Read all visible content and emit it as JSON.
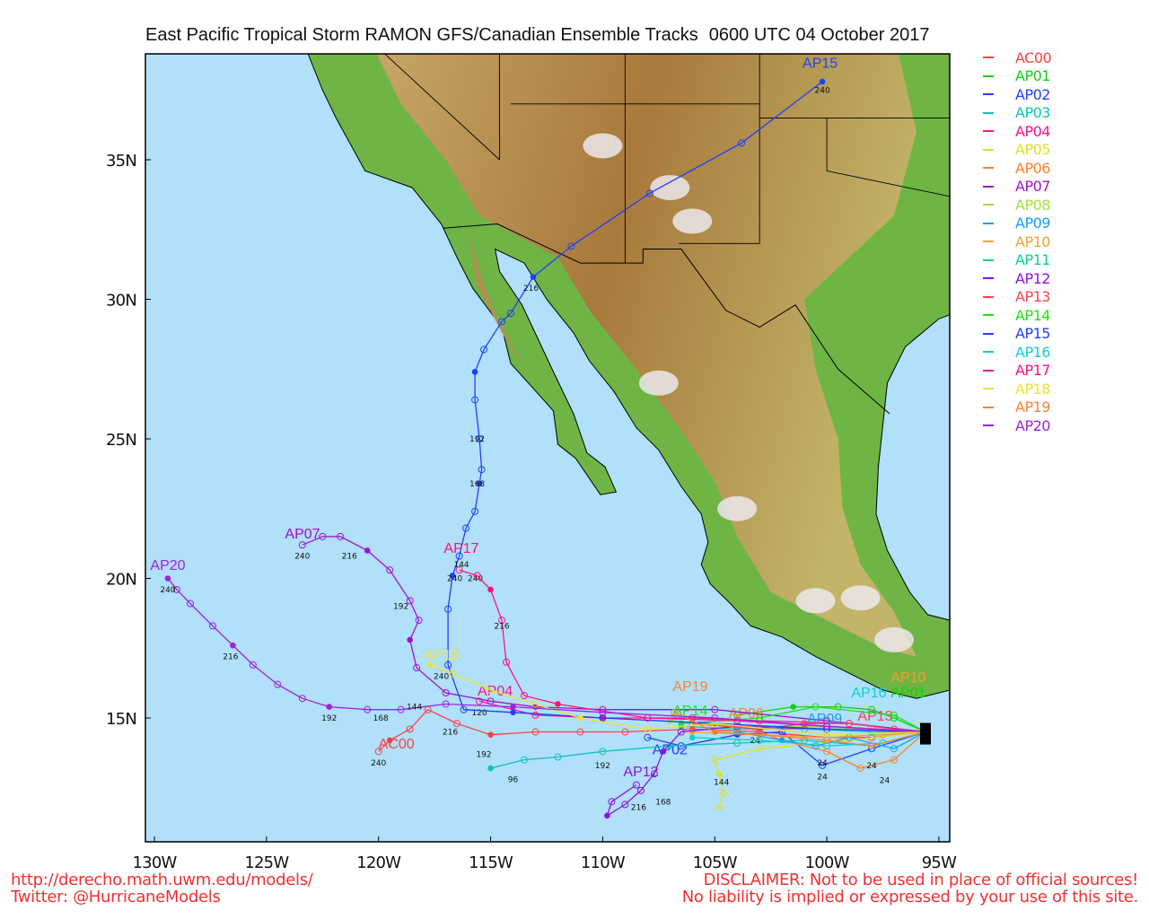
{
  "title": {
    "main": "East Pacific Tropical Storm RAMON GFS/Canadian Ensemble Tracks",
    "time": "0600 UTC 04 October 2017"
  },
  "axes": {
    "lon_ticks": [
      {
        "lon": -130,
        "label": "130W"
      },
      {
        "lon": -125,
        "label": "125W"
      },
      {
        "lon": -120,
        "label": "120W"
      },
      {
        "lon": -115,
        "label": "115W"
      },
      {
        "lon": -110,
        "label": "110W"
      },
      {
        "lon": -105,
        "label": "105W"
      },
      {
        "lon": -100,
        "label": "100W"
      },
      {
        "lon": -95,
        "label": "95W"
      }
    ],
    "lat_ticks": [
      {
        "lat": 35,
        "label": "35N"
      },
      {
        "lat": 30,
        "label": "30N"
      },
      {
        "lat": 25,
        "label": "25N"
      },
      {
        "lat": 20,
        "label": "20N"
      },
      {
        "lat": 15,
        "label": "15N"
      }
    ]
  },
  "colors": {
    "ocean": "#b0e0fa",
    "land_low": "#6fb545",
    "land_high": "#a67c3a",
    "peaks": "#ece8ec"
  },
  "legend": [
    {
      "name": "AC00",
      "color": "#ff4040"
    },
    {
      "name": "AP01",
      "color": "#10d010"
    },
    {
      "name": "AP02",
      "color": "#2040ff"
    },
    {
      "name": "AP03",
      "color": "#10c0c0"
    },
    {
      "name": "AP04",
      "color": "#ff1090"
    },
    {
      "name": "AP05",
      "color": "#e0e020"
    },
    {
      "name": "AP06",
      "color": "#ff8020"
    },
    {
      "name": "AP07",
      "color": "#a010d0"
    },
    {
      "name": "AP08",
      "color": "#a0e040"
    },
    {
      "name": "AP09",
      "color": "#10a0ff"
    },
    {
      "name": "AP10",
      "color": "#f0a030"
    },
    {
      "name": "AP11",
      "color": "#10d090"
    },
    {
      "name": "AP12",
      "color": "#9010e0"
    },
    {
      "name": "AP13",
      "color": "#ff4050"
    },
    {
      "name": "AP14",
      "color": "#20e010"
    },
    {
      "name": "AP15",
      "color": "#2040ff"
    },
    {
      "name": "AP16",
      "color": "#10d0d0"
    },
    {
      "name": "AP17",
      "color": "#ff1080"
    },
    {
      "name": "AP18",
      "color": "#f0e030"
    },
    {
      "name": "AP19",
      "color": "#ff8030"
    },
    {
      "name": "AP20",
      "color": "#a020e0"
    }
  ],
  "tracks": [
    {
      "name": "AC00",
      "label_at": [
        -119.2,
        13.9
      ],
      "points": [
        [
          -95.6,
          14.5
        ],
        [
          -98,
          14.3
        ],
        [
          -100,
          14.3
        ],
        [
          -103,
          14.5
        ],
        [
          -106,
          14.6
        ],
        [
          -109,
          14.5
        ],
        [
          -111,
          14.5
        ],
        [
          -113,
          14.5
        ],
        [
          -115,
          14.4
        ],
        [
          -116.5,
          14.8
        ],
        [
          -117.8,
          15.3
        ],
        [
          -118.6,
          14.6
        ],
        [
          -119.5,
          14.2
        ],
        [
          -120,
          13.8
        ]
      ],
      "hours": [
        [
          -116.8,
          14.4,
          "216"
        ],
        [
          -120,
          13.3,
          "240"
        ]
      ]
    },
    {
      "name": "AP01",
      "label_at": [
        -96.9,
        15.3
      ],
      "points": [
        [
          -95.6,
          14.5
        ],
        [
          -97,
          15.0
        ],
        [
          -98,
          15.3
        ],
        [
          -99.5,
          15.4
        ],
        [
          -101.5,
          15.4
        ],
        [
          -104,
          15.1
        ]
      ],
      "hours": []
    },
    {
      "name": "AP02",
      "label_at": [
        -107,
        13.7
      ],
      "points": [
        [
          -95.6,
          14.5
        ],
        [
          -98,
          13.9
        ],
        [
          -100.2,
          13.3
        ],
        [
          -102,
          14.5
        ],
        [
          -104,
          14.4
        ],
        [
          -106.5,
          14.0
        ],
        [
          -108,
          14.3
        ]
      ],
      "hours": [
        [
          -100.2,
          12.8,
          "24"
        ]
      ]
    },
    {
      "name": "AP03",
      "label_at": null,
      "points": [
        [
          -95.6,
          14.5
        ],
        [
          -98,
          14.0
        ],
        [
          -101,
          14.2
        ],
        [
          -104,
          14.1
        ],
        [
          -107,
          14.0
        ],
        [
          -110,
          13.8
        ],
        [
          -112,
          13.6
        ],
        [
          -113.5,
          13.5
        ],
        [
          -115,
          13.2
        ]
      ],
      "hours": [
        [
          -115.3,
          13.6,
          "192"
        ],
        [
          -114,
          12.7,
          "96"
        ]
      ]
    },
    {
      "name": "AP04",
      "label_at": [
        -114.8,
        15.8
      ],
      "points": [
        [
          -95.6,
          14.5
        ],
        [
          -99,
          14.8
        ],
        [
          -103,
          14.9
        ],
        [
          -106,
          15.0
        ],
        [
          -110,
          15.0
        ],
        [
          -113,
          15.1
        ],
        [
          -115.5,
          15.6
        ]
      ],
      "hours": [
        [
          -115.5,
          15.1,
          "120"
        ]
      ]
    },
    {
      "name": "AP05",
      "label_at": null,
      "points": [
        [
          -95.6,
          14.5
        ],
        [
          -99,
          14.2
        ],
        [
          -103,
          13.9
        ],
        [
          -105,
          13.5
        ],
        [
          -104.8,
          13.0
        ],
        [
          -104.6,
          12.3
        ],
        [
          -104.8,
          11.8
        ]
      ],
      "hours": [
        [
          -104.7,
          12.6,
          "144"
        ]
      ]
    },
    {
      "name": "AP06",
      "label_at": [
        -103.6,
        15.0
      ],
      "points": [
        [
          -95.6,
          14.5
        ],
        [
          -97,
          13.5
        ],
        [
          -98.5,
          13.2
        ],
        [
          -100,
          13.8
        ],
        [
          -102,
          14.2
        ],
        [
          -104,
          14.8
        ]
      ],
      "hours": [
        [
          -97.5,
          12.8,
          "24"
        ]
      ]
    },
    {
      "name": "AP07",
      "label_at": [
        -123.4,
        21.6
      ],
      "points": [
        [
          -95.6,
          14.5
        ],
        [
          -100,
          14.9
        ],
        [
          -105,
          15.3
        ],
        [
          -110,
          15.3
        ],
        [
          -113,
          15.4
        ],
        [
          -115,
          15.6
        ],
        [
          -117,
          15.9
        ],
        [
          -118.3,
          16.8
        ],
        [
          -118.6,
          17.8
        ],
        [
          -118.2,
          18.5
        ],
        [
          -118.6,
          19.2
        ],
        [
          -119.5,
          20.3
        ],
        [
          -120.5,
          21.0
        ],
        [
          -121.7,
          21.5
        ],
        [
          -122.5,
          21.5
        ],
        [
          -123.4,
          21.2
        ]
      ],
      "hours": [
        [
          -119,
          18.9,
          "192"
        ],
        [
          -121.3,
          20.7,
          "216"
        ],
        [
          -123.4,
          20.7,
          "240"
        ]
      ]
    },
    {
      "name": "AP08",
      "label_at": null,
      "points": [
        [
          -95.6,
          14.5
        ],
        [
          -98,
          14.6
        ],
        [
          -101,
          14.7
        ],
        [
          -104,
          14.7
        ],
        [
          -107,
          14.9
        ]
      ],
      "hours": []
    },
    {
      "name": "AP09",
      "label_at": [
        -100.1,
        14.8
      ],
      "points": [
        [
          -95.6,
          14.5
        ],
        [
          -97,
          13.9
        ],
        [
          -99,
          14.3
        ],
        [
          -100.5,
          14.0
        ],
        [
          -102,
          14.2
        ],
        [
          -104,
          14.5
        ]
      ],
      "hours": [
        [
          -100.2,
          13.3,
          "24"
        ]
      ]
    },
    {
      "name": "AP10",
      "label_at": [
        -96.2,
        15.5
      ],
      "points": [
        [
          -95.6,
          14.5
        ],
        [
          -97.5,
          14.4
        ],
        [
          -100,
          14.3
        ],
        [
          -103,
          14.4
        ],
        [
          -106,
          14.5
        ]
      ],
      "hours": []
    },
    {
      "name": "AP11",
      "label_at": null,
      "points": [
        [
          -95.6,
          14.5
        ],
        [
          -98,
          14.5
        ],
        [
          -101,
          14.6
        ],
        [
          -104,
          14.6
        ],
        [
          -106.5,
          14.7
        ]
      ],
      "hours": []
    },
    {
      "name": "AP12",
      "label_at": [
        -108.7,
        12.9
      ],
      "points": [
        [
          -95.6,
          14.5
        ],
        [
          -100,
          14.6
        ],
        [
          -104,
          14.7
        ],
        [
          -106.5,
          14.5
        ],
        [
          -107.3,
          13.8
        ],
        [
          -107.7,
          13.0
        ],
        [
          -108.3,
          12.4
        ],
        [
          -109,
          11.9
        ],
        [
          -109.8,
          11.5
        ],
        [
          -109.6,
          12.0
        ],
        [
          -108.5,
          12.6
        ]
      ],
      "hours": [
        [
          -108.4,
          11.7,
          "216"
        ],
        [
          -107.3,
          11.9,
          "168"
        ],
        [
          -110,
          13.2,
          "192"
        ]
      ]
    },
    {
      "name": "AP13",
      "label_at": [
        -98,
        14.9
      ],
      "points": [
        [
          -95.6,
          14.5
        ],
        [
          -97,
          14.6
        ],
        [
          -99,
          14.8
        ],
        [
          -101,
          14.8
        ],
        [
          -103,
          14.6
        ],
        [
          -106,
          14.8
        ]
      ],
      "hours": [
        [
          -98,
          13.2,
          "24"
        ]
      ]
    },
    {
      "name": "AP14",
      "label_at": [
        -106.1,
        15.1
      ],
      "points": [
        [
          -95.6,
          14.5
        ],
        [
          -97,
          15.1
        ],
        [
          -100.5,
          15.4
        ],
        [
          -103,
          15.0
        ],
        [
          -106.5,
          14.8
        ]
      ],
      "hours": [
        [
          -103.2,
          14.1,
          "24"
        ]
      ]
    },
    {
      "name": "AP15",
      "label_at": [
        -100.3,
        38.3
      ],
      "points": [
        [
          -95.6,
          14.5
        ],
        [
          -100,
          14.6
        ],
        [
          -105,
          14.8
        ],
        [
          -110,
          15.0
        ],
        [
          -114,
          15.2
        ],
        [
          -116.2,
          15.3
        ],
        [
          -116.9,
          16.9
        ],
        [
          -116.9,
          18.9
        ],
        [
          -116.7,
          20.1
        ],
        [
          -116.4,
          20.8
        ],
        [
          -116.1,
          21.8
        ],
        [
          -115.7,
          22.4
        ],
        [
          -115.5,
          23.4
        ],
        [
          -115.4,
          23.9
        ],
        [
          -115.5,
          25.0
        ],
        [
          -115.7,
          26.4
        ],
        [
          -115.7,
          27.4
        ],
        [
          -115.3,
          28.2
        ],
        [
          -114.5,
          29.2
        ],
        [
          -114.1,
          29.5
        ],
        [
          -113.1,
          30.8
        ],
        [
          -111.4,
          31.9
        ],
        [
          -107.9,
          33.8
        ],
        [
          -103.8,
          35.6
        ],
        [
          -100.2,
          37.8
        ]
      ],
      "hours": [
        [
          -116.4,
          19.9,
          "240"
        ],
        [
          -115.6,
          23.3,
          "168"
        ],
        [
          -115.6,
          24.9,
          "192"
        ],
        [
          -113.2,
          30.3,
          "216"
        ],
        [
          -100.2,
          37.4,
          "240"
        ]
      ]
    },
    {
      "name": "AP16",
      "label_at": [
        -96.1,
        15.1
      ],
      "points": [
        [
          -95.6,
          14.5
        ],
        [
          -97.5,
          14.1
        ],
        [
          -100,
          14.0
        ],
        [
          -103,
          14.2
        ],
        [
          -106,
          14.3
        ]
      ],
      "hours": []
    },
    {
      "name": "AP17",
      "label_at": [
        -116.3,
        20.6
      ],
      "points": [
        [
          -95.6,
          14.5
        ],
        [
          -100,
          14.7
        ],
        [
          -104,
          14.9
        ],
        [
          -108,
          15.0
        ],
        [
          -112,
          15.5
        ],
        [
          -113.5,
          15.8
        ],
        [
          -114.3,
          17.0
        ],
        [
          -114.5,
          18.5
        ],
        [
          -115,
          19.6
        ],
        [
          -115.6,
          20.1
        ],
        [
          -116.4,
          20.3
        ]
      ],
      "hours": [
        [
          -114.5,
          18.2,
          "216"
        ],
        [
          -116.6,
          19.9,
          "240"
        ],
        [
          -116.3,
          20.4,
          "144"
        ]
      ]
    },
    {
      "name": "AP18",
      "label_at": [
        -117.2,
        17.0
      ],
      "points": [
        [
          -95.6,
          14.5
        ],
        [
          -100,
          14.4
        ],
        [
          -105,
          14.8
        ],
        [
          -108,
          14.6
        ],
        [
          -111,
          15.0
        ],
        [
          -113,
          15.5
        ],
        [
          -115,
          16.0
        ],
        [
          -116.7,
          16.6
        ],
        [
          -117.7,
          16.9
        ]
      ],
      "hours": [
        [
          -117.2,
          16.4,
          "240"
        ]
      ]
    },
    {
      "name": "AP19",
      "label_at": [
        -106.1,
        15.7
      ],
      "points": [
        [
          -95.6,
          14.5
        ],
        [
          -98,
          14.0
        ],
        [
          -100,
          14.2
        ],
        [
          -103,
          14.4
        ],
        [
          -105,
          14.5
        ],
        [
          -106.8,
          15.2
        ]
      ],
      "hours": []
    },
    {
      "name": "AP20",
      "label_at": [
        -129.4,
        20.3
      ],
      "points": [
        [
          -95.6,
          14.5
        ],
        [
          -100,
          14.7
        ],
        [
          -105,
          15.0
        ],
        [
          -110,
          15.2
        ],
        [
          -114,
          15.4
        ],
        [
          -117,
          15.5
        ],
        [
          -119,
          15.3
        ],
        [
          -120.5,
          15.3
        ],
        [
          -122.2,
          15.4
        ],
        [
          -123.4,
          15.7
        ],
        [
          -124.5,
          16.2
        ],
        [
          -125.6,
          16.9
        ],
        [
          -126.5,
          17.6
        ],
        [
          -127.4,
          18.3
        ],
        [
          -128.4,
          19.1
        ],
        [
          -129,
          19.6
        ],
        [
          -129.4,
          20.0
        ]
      ],
      "hours": [
        [
          -122.2,
          14.9,
          "192"
        ],
        [
          -126.6,
          17.1,
          "216"
        ],
        [
          -129.4,
          19.5,
          "240"
        ],
        [
          -119.9,
          14.9,
          "168"
        ],
        [
          -118.4,
          15.3,
          "144"
        ]
      ]
    }
  ],
  "footer": {
    "url": "http://derecho.math.uwm.edu/models/",
    "twitter": "Twitter: @HurricaneModels",
    "disclaimer1": "DISCLAIMER: Not to be used in place of official sources!",
    "disclaimer2": "No liability is implied or expressed by your use of this site."
  }
}
